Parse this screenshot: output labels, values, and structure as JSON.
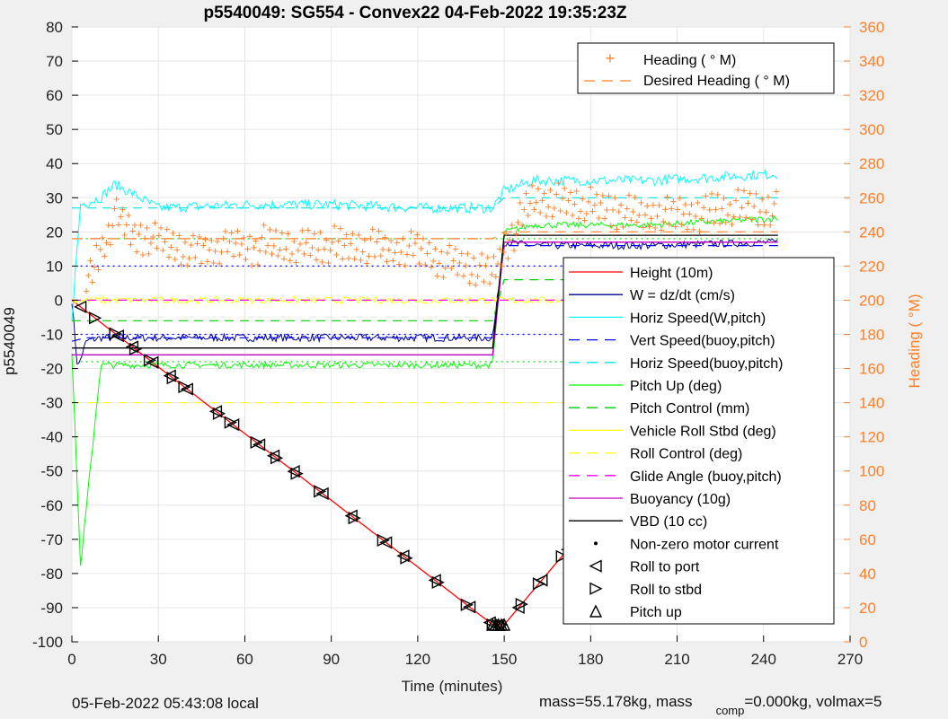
{
  "figure": {
    "title": "p5540049: SG554 - Convex22 04-Feb-2022 19:35:23Z",
    "footer_left": "05-Feb-2022 05:43:08 local",
    "footer_right_a": "mass=55.178kg, mass",
    "footer_right_sub": "comp",
    "footer_right_b": "=0.000kg, volmax=5"
  },
  "legend_top": [
    {
      "label": "Heading (  ° M)"
    },
    {
      "label": "Desired Heading (    ° M)"
    }
  ],
  "legend_main": [
    {
      "label": "Height (10m)"
    },
    {
      "label": "W = dz/dt (cm/s)"
    },
    {
      "label": "Horiz Speed(W,pitch)"
    },
    {
      "label": "Vert Speed(buoy,pitch)"
    },
    {
      "label": "Horiz Speed(buoy,pitch)"
    },
    {
      "label": "Pitch Up (deg)"
    },
    {
      "label": "Pitch Control (mm)"
    },
    {
      "label": "Vehicle Roll Stbd (deg)"
    },
    {
      "label": "Roll Control (deg)"
    },
    {
      "label": "Glide Angle (buoy,pitch)"
    },
    {
      "label": "Buoyancy (10g)"
    },
    {
      "label": "VBD (10 cc)"
    },
    {
      "label": "Non-zero motor current"
    },
    {
      "label": "Roll to port"
    },
    {
      "label": "Roll to stbd"
    },
    {
      "label": "Pitch up"
    }
  ],
  "chart_data": {
    "type": "line",
    "title": "p5540049: SG554 - Convex22 04-Feb-2022 19:35:23Z",
    "xlabel": "Time (minutes)",
    "ylabel": "p5540049",
    "y2label": "Heading (  °M)",
    "xlim": [
      0,
      270
    ],
    "ylim": [
      -100,
      80
    ],
    "y2lim": [
      0,
      360
    ],
    "xticks": [
      0,
      30,
      60,
      90,
      120,
      150,
      180,
      210,
      240,
      270
    ],
    "yticks": [
      -100,
      -90,
      -80,
      -70,
      -60,
      -50,
      -40,
      -30,
      -20,
      -10,
      0,
      10,
      20,
      30,
      40,
      50,
      60,
      70,
      80
    ],
    "y2ticks": [
      0,
      20,
      40,
      60,
      80,
      100,
      120,
      140,
      160,
      180,
      200,
      220,
      240,
      260,
      280,
      300,
      320,
      340,
      360
    ],
    "grid": true,
    "legend_position": "right",
    "colors": {
      "height": "#ff0000",
      "w": "#00008b",
      "horiz_w": "#00ffff",
      "vert_buoy": "#0000ff",
      "horiz_buoy": "#00e5e5",
      "pitch": "#00ff00",
      "pitch_ctl": "#00cc00",
      "roll": "#ffff00",
      "glide": "#ff00ff",
      "buoy": "#bf00bf",
      "vbd": "#000000",
      "heading": "#ff7f27",
      "axis_right": "#ff7f27"
    },
    "series": [
      {
        "name": "Height (10m)",
        "x": [
          0,
          146,
          150,
          245
        ],
        "y": [
          0,
          -95,
          -95,
          0
        ]
      },
      {
        "name": "W = dz/dt (cm/s)",
        "x": [
          0,
          2,
          5,
          10,
          30,
          60,
          90,
          120,
          146,
          150,
          160,
          200,
          245
        ],
        "y": [
          0,
          -20,
          -12,
          -11,
          -11,
          -11,
          -11,
          -11,
          -11,
          17,
          16,
          16,
          17
        ]
      },
      {
        "name": "Horiz Speed(W,pitch)",
        "x": [
          0,
          3,
          10,
          15,
          30,
          60,
          90,
          120,
          146,
          150,
          160,
          200,
          245
        ],
        "y": [
          -5,
          28,
          30,
          34,
          27,
          28,
          28,
          27,
          27,
          32,
          35,
          35,
          37
        ]
      },
      {
        "name": "Vert Speed(buoy,pitch)",
        "x": [
          0,
          5,
          30,
          60,
          90,
          120,
          146,
          150,
          200,
          245
        ],
        "y": [
          -12,
          -11,
          -11,
          -11,
          -11,
          -11,
          -11,
          16,
          16,
          16
        ]
      },
      {
        "name": "Horiz Speed(buoy,pitch)",
        "x": [
          0,
          5,
          30,
          60,
          90,
          120,
          146,
          150,
          200,
          245
        ],
        "y": [
          27,
          27,
          27,
          27,
          27,
          27,
          27,
          30,
          30,
          30
        ]
      },
      {
        "name": "Pitch Up (deg)",
        "x": [
          0,
          3,
          10,
          30,
          60,
          90,
          120,
          146,
          150,
          160,
          200,
          245
        ],
        "y": [
          -15,
          -78,
          -19,
          -19,
          -19,
          -19,
          -19,
          -19,
          20,
          22,
          22,
          24
        ]
      },
      {
        "name": "Pitch Control (mm)",
        "x": [
          0,
          146,
          150,
          245
        ],
        "y": [
          -6,
          -6,
          6,
          6
        ]
      },
      {
        "name": "Vehicle Roll Stbd (deg)",
        "x": [
          0,
          146,
          150,
          245
        ],
        "y": [
          0,
          0,
          0,
          0
        ]
      },
      {
        "name": "Roll Control (deg)",
        "x": [
          0,
          146,
          150,
          245
        ],
        "y": [
          -30,
          -30,
          -30,
          -30
        ]
      },
      {
        "name": "Glide Angle (buoy,pitch)",
        "x": [
          0,
          146,
          150,
          245
        ],
        "y": [
          0,
          0,
          0,
          0
        ]
      },
      {
        "name": "Buoyancy (10g)",
        "x": [
          0,
          3,
          146,
          150,
          245
        ],
        "y": [
          -16,
          -16,
          -16,
          17,
          17
        ]
      },
      {
        "name": "VBD (10 cc)",
        "x": [
          0,
          3,
          146,
          150,
          245
        ],
        "y": [
          -14,
          -14,
          -14,
          19,
          19
        ]
      },
      {
        "name": "Heading (  ° M)",
        "axis": "right",
        "x": [
          5,
          15,
          20,
          30,
          40,
          60,
          90,
          120,
          146,
          150,
          160,
          200,
          245
        ],
        "y": [
          210,
          250,
          240,
          235,
          230,
          232,
          232,
          230,
          215,
          230,
          260,
          250,
          255
        ]
      },
      {
        "name": "Desired Heading (    ° M)",
        "axis": "right",
        "x": [
          0,
          146,
          150,
          245
        ],
        "y": [
          236,
          236,
          240,
          240
        ]
      }
    ],
    "roll_to_port_x": [
      3,
      16,
      21,
      28,
      34,
      40,
      50,
      56,
      65,
      70,
      77,
      87,
      97,
      109,
      115,
      126,
      138,
      145,
      148,
      155,
      163,
      172,
      181,
      190,
      195,
      206,
      214,
      222,
      230,
      238,
      244
    ],
    "roll_to_stbd_x": [
      8,
      15,
      22,
      27,
      35,
      39,
      51,
      55,
      64,
      71,
      78,
      86,
      98,
      108,
      116,
      127,
      137,
      146,
      149,
      156,
      162,
      170,
      182,
      191,
      197,
      205,
      215,
      223,
      231,
      237,
      243
    ],
    "pitch_up_x": [
      146,
      147,
      148,
      149,
      150,
      245
    ]
  }
}
